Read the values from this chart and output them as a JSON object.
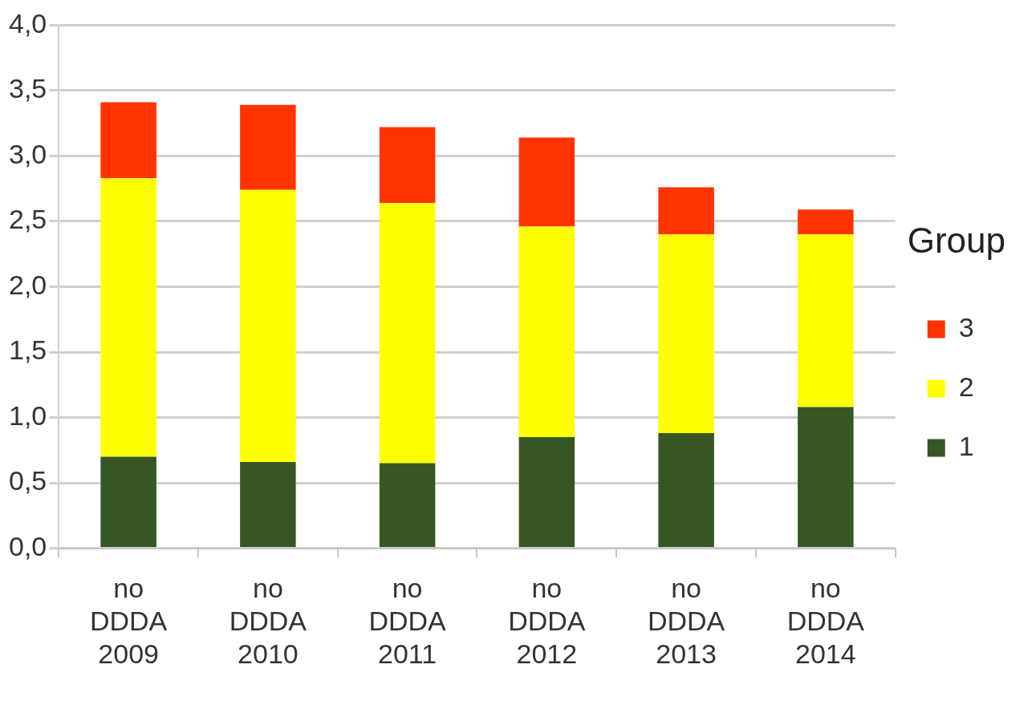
{
  "chart_data": {
    "type": "bar",
    "stacked": true,
    "legend_title": "Group",
    "legend": "right",
    "grid": "y",
    "categories": [
      "no\nDDDA\n2009",
      "no\nDDDA\n2010",
      "no\nDDDA\n2011",
      "no\nDDDA\n2012",
      "no\nDDDA\n2013",
      "no\nDDDA\n2014"
    ],
    "series": [
      {
        "name": "1",
        "color": "#375623",
        "values": [
          0.7,
          0.66,
          0.65,
          0.85,
          0.88,
          1.08
        ]
      },
      {
        "name": "2",
        "color": "#ffff00",
        "values": [
          2.13,
          2.08,
          1.99,
          1.61,
          1.52,
          1.32
        ]
      },
      {
        "name": "3",
        "color": "#ff3300",
        "values": [
          0.58,
          0.65,
          0.58,
          0.68,
          0.36,
          0.19
        ]
      }
    ],
    "ylim": [
      0,
      4
    ],
    "yticks": [
      {
        "value": 0,
        "label": "0,0"
      },
      {
        "value": 0.5,
        "label": "0,5"
      },
      {
        "value": 1,
        "label": "1,0"
      },
      {
        "value": 1.5,
        "label": "1,5"
      },
      {
        "value": 2,
        "label": "2,0"
      },
      {
        "value": 2.5,
        "label": "2,5"
      },
      {
        "value": 3,
        "label": "3,0"
      },
      {
        "value": 3.5,
        "label": "3,5"
      },
      {
        "value": 4,
        "label": "4,0"
      }
    ]
  }
}
